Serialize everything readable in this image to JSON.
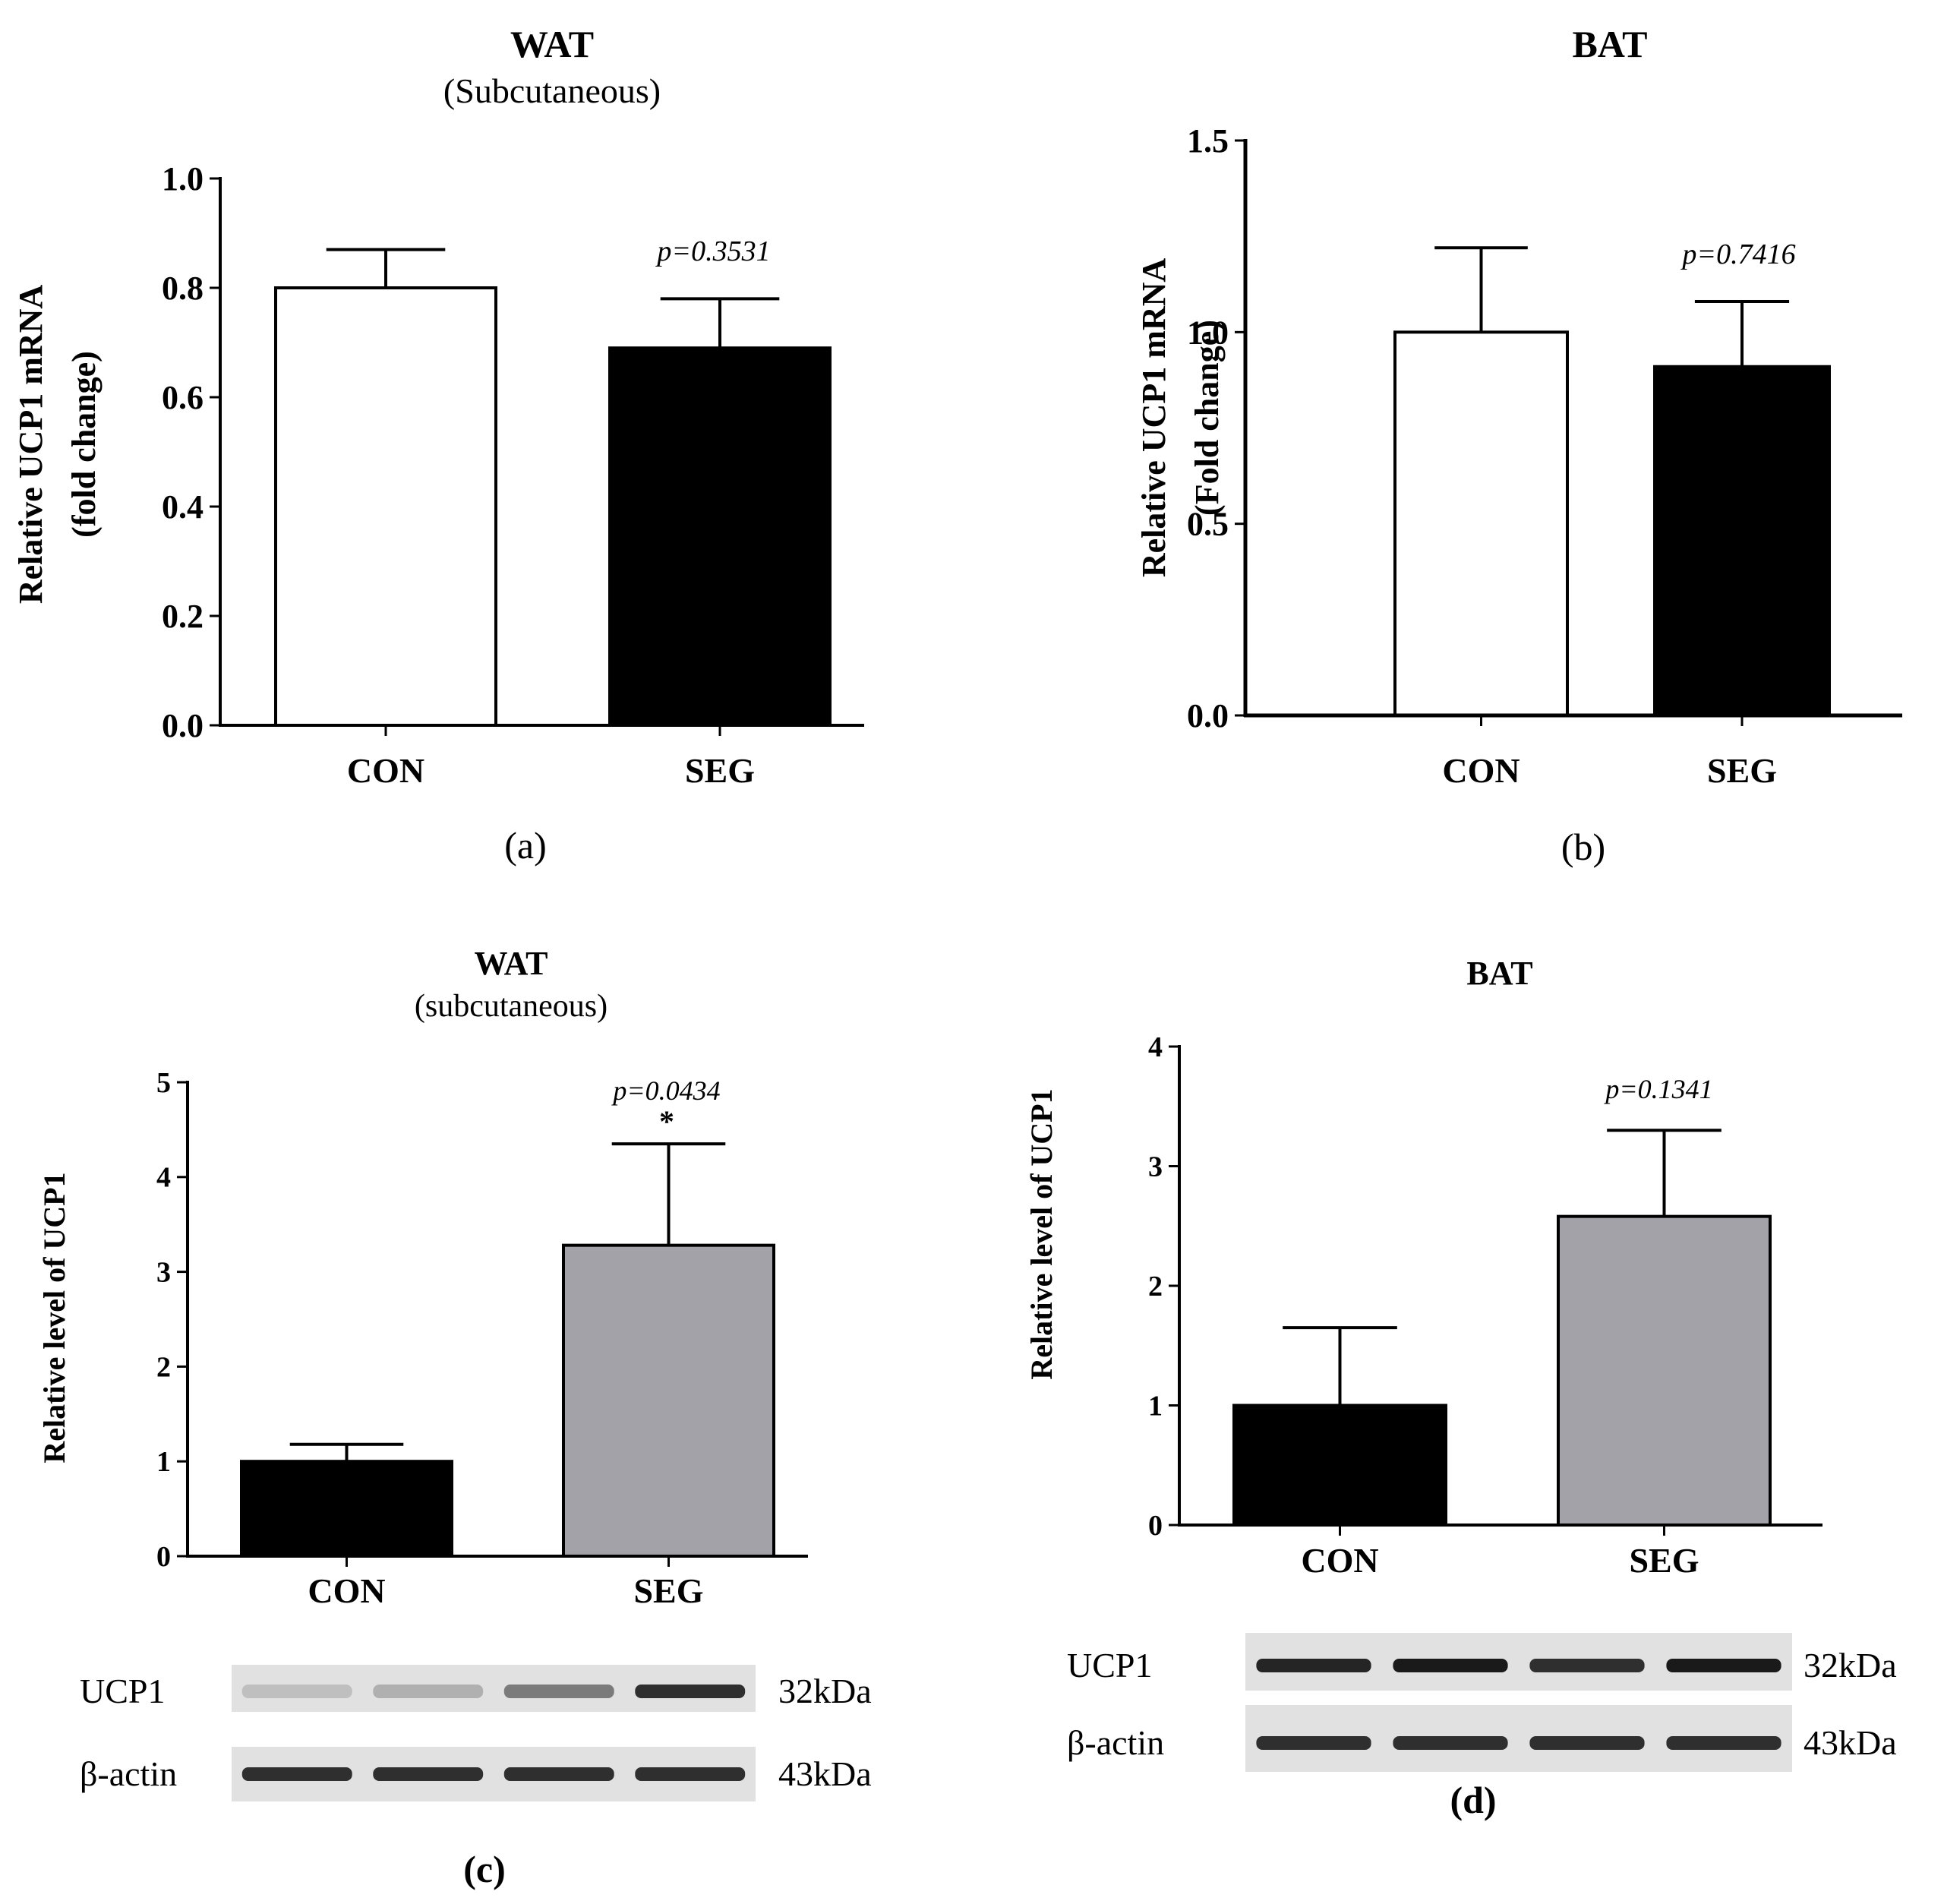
{
  "chart_data": [
    {
      "panel": "(a)",
      "type": "bar",
      "title": "WAT",
      "subtitle": "(Subcutaneous)",
      "ylabel": [
        "Relative UCP1 mRNA",
        "(fold change)"
      ],
      "categories": [
        "CON",
        "SEG"
      ],
      "values": [
        0.8,
        0.69
      ],
      "errors": [
        0.07,
        0.09
      ],
      "colors": [
        "#ffffff",
        "#000000"
      ],
      "yticks": [
        "0.0",
        "0.2",
        "0.4",
        "0.6",
        "0.8",
        "1.0"
      ],
      "ylim": [
        0,
        1.0
      ],
      "annotation": "p=0.3531",
      "star": ""
    },
    {
      "panel": "(b)",
      "type": "bar",
      "title": "BAT",
      "subtitle": "",
      "ylabel": [
        "Relative UCP1 mRNA",
        "(Fold change)"
      ],
      "categories": [
        "CON",
        "SEG"
      ],
      "values": [
        1.0,
        0.91
      ],
      "errors": [
        0.22,
        0.17
      ],
      "colors": [
        "#ffffff",
        "#000000"
      ],
      "yticks": [
        "0.0",
        "0.5",
        "1.0",
        "1.5"
      ],
      "ylim": [
        0,
        1.5
      ],
      "annotation": "p=0.7416",
      "star": ""
    },
    {
      "panel": "(c)",
      "type": "bar",
      "title": "WAT",
      "subtitle": "(subcutaneous)",
      "ylabel": [
        "Relative level of UCP1"
      ],
      "categories": [
        "CON",
        "SEG"
      ],
      "values": [
        1.0,
        3.28
      ],
      "errors": [
        0.18,
        1.07
      ],
      "colors": [
        "#000000",
        "#a3a2a8"
      ],
      "yticks": [
        "0",
        "1",
        "2",
        "3",
        "4",
        "5"
      ],
      "ylim": [
        0,
        5
      ],
      "annotation": "p=0.0434",
      "star": "*"
    },
    {
      "panel": "(d)",
      "type": "bar",
      "title": "BAT",
      "subtitle": "",
      "ylabel": [
        "Relative level of UCP1"
      ],
      "categories": [
        "CON",
        "SEG"
      ],
      "values": [
        1.0,
        2.58
      ],
      "errors": [
        0.65,
        0.72
      ],
      "colors": [
        "#000000",
        "#a3a2a8"
      ],
      "yticks": [
        "0",
        "1",
        "2",
        "3",
        "4"
      ],
      "ylim": [
        0,
        4
      ],
      "annotation": "p=0.1341",
      "star": ""
    }
  ],
  "blots": [
    {
      "panel": "(c)",
      "rows": [
        {
          "protein": "UCP1",
          "size": "32kDa",
          "band_intensity": [
            0.18,
            0.25,
            0.5,
            0.85
          ]
        },
        {
          "protein": "β-actin",
          "size": "43kDa",
          "band_intensity": [
            0.85,
            0.85,
            0.85,
            0.85
          ]
        }
      ]
    },
    {
      "panel": "(d)",
      "rows": [
        {
          "protein": "UCP1",
          "size": "32kDa",
          "band_intensity": [
            0.9,
            0.95,
            0.85,
            0.95
          ]
        },
        {
          "protein": "β-actin",
          "size": "43kDa",
          "band_intensity": [
            0.85,
            0.85,
            0.85,
            0.85
          ]
        }
      ]
    }
  ]
}
